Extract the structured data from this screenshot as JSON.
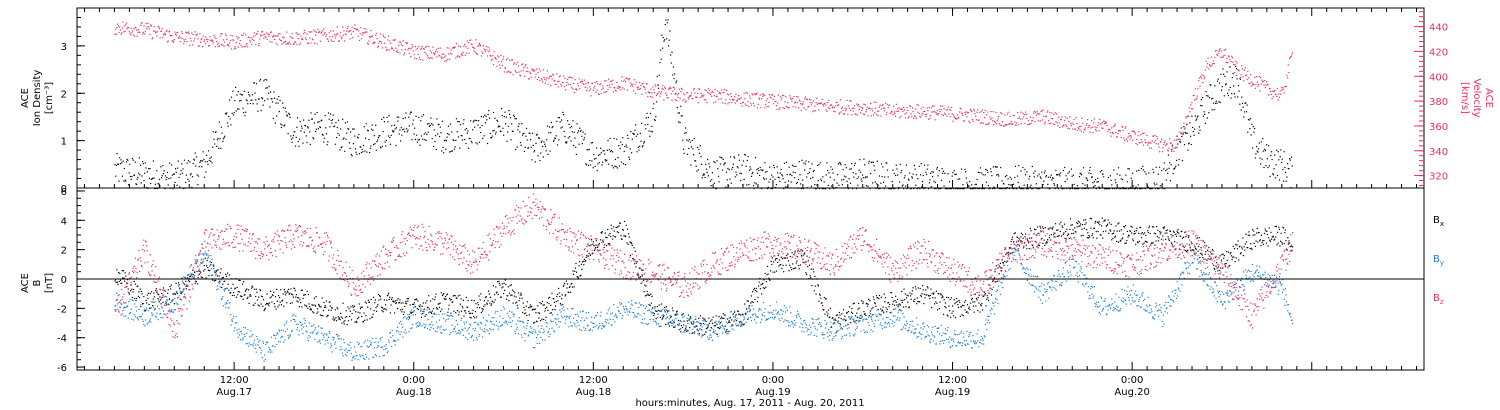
{
  "chart_data": [
    {
      "type": "scatter",
      "panel": "top",
      "ylabel_left": [
        "ACE",
        "Ion Density",
        "[cm⁻³]"
      ],
      "ylabel_right": [
        "ACE",
        "Velocity",
        "[km/s]"
      ],
      "ylim_left": [
        0,
        3.8
      ],
      "ylim_right": [
        310,
        455
      ],
      "yticks_left": [
        0,
        1,
        2,
        3
      ],
      "yticks_right": [
        320,
        340,
        360,
        380,
        400,
        420,
        440
      ],
      "colors": {
        "density": "#000000",
        "velocity": "#e8305a"
      },
      "series": [
        {
          "name": "Ion Density",
          "axis": "left",
          "color": "#000000",
          "x_hours": [
            0,
            2,
            4,
            6,
            8,
            10,
            12,
            14,
            16,
            18,
            20,
            22,
            24,
            26,
            28,
            30,
            32,
            34,
            36,
            36.8,
            38,
            40,
            42,
            44,
            46,
            48,
            50,
            52,
            54,
            56,
            58,
            60,
            62,
            64,
            66,
            68,
            70,
            71,
            72,
            73,
            74,
            75,
            76,
            77,
            78,
            78.7
          ],
          "y": [
            0.4,
            0.3,
            0.2,
            0.5,
            1.8,
            2.0,
            1.2,
            1.3,
            1.0,
            1.2,
            1.3,
            1.1,
            1.2,
            1.4,
            0.8,
            1.3,
            0.7,
            0.8,
            1.5,
            3.6,
            1.0,
            0.3,
            0.4,
            0.2,
            0.3,
            0.2,
            0.3,
            0.2,
            0.2,
            0.1,
            0.1,
            0.15,
            0.1,
            0.1,
            0.1,
            0.1,
            0.2,
            0.8,
            1.2,
            1.8,
            2.2,
            2.3,
            1.0,
            0.6,
            0.5,
            0.3
          ]
        },
        {
          "name": "Velocity",
          "axis": "right",
          "color": "#e8305a",
          "x_hours": [
            0,
            2,
            4,
            6,
            8,
            10,
            12,
            14,
            16,
            18,
            20,
            22,
            24,
            26,
            28,
            30,
            32,
            34,
            36,
            38,
            40,
            42,
            44,
            46,
            48,
            50,
            52,
            54,
            56,
            58,
            60,
            62,
            64,
            66,
            68,
            70,
            71,
            72,
            73,
            74,
            75,
            76,
            77,
            78,
            78.7
          ],
          "y": [
            440,
            438,
            432,
            430,
            428,
            432,
            431,
            433,
            436,
            428,
            420,
            418,
            425,
            410,
            402,
            395,
            390,
            395,
            388,
            385,
            385,
            382,
            380,
            378,
            376,
            375,
            372,
            372,
            370,
            368,
            365,
            368,
            362,
            360,
            352,
            345,
            345,
            380,
            410,
            420,
            405,
            398,
            390,
            385,
            420
          ]
        }
      ]
    },
    {
      "type": "scatter",
      "panel": "bottom",
      "ylabel_left": [
        "ACE",
        "B",
        "[nT]"
      ],
      "ylim": [
        -6.2,
        6.2
      ],
      "yticks": [
        -6,
        -4,
        -2,
        0,
        2,
        4,
        6
      ],
      "legend": [
        {
          "label": "B",
          "sub": "x",
          "color": "#000000"
        },
        {
          "label": "B",
          "sub": "y",
          "color": "#1f7fd6"
        },
        {
          "label": "B",
          "sub": "z",
          "color": "#e8305a"
        }
      ],
      "series": [
        {
          "name": "Bx",
          "color": "#000000",
          "x_hours": [
            0,
            2,
            4,
            6,
            8,
            10,
            12,
            14,
            16,
            18,
            20,
            22,
            24,
            26,
            28,
            30,
            32,
            34,
            36,
            38,
            40,
            42,
            44,
            46,
            48,
            50,
            52,
            54,
            56,
            58,
            60,
            62,
            64,
            66,
            68,
            70,
            72,
            74,
            76,
            78,
            78.7
          ],
          "y": [
            0.5,
            -1.5,
            -1.0,
            0.8,
            -0.5,
            -1.5,
            -1.0,
            -2.0,
            -2.5,
            -1.5,
            -2.0,
            -1.5,
            -2.0,
            -0.5,
            -2.5,
            -1.0,
            2.5,
            3.5,
            -2.0,
            -3.0,
            -3.2,
            -2.5,
            1.0,
            1.5,
            -3.0,
            -2.0,
            -1.5,
            -1.0,
            -2.0,
            -1.5,
            2.5,
            3.0,
            3.5,
            3.5,
            3.0,
            3.0,
            2.5,
            1.0,
            2.8,
            3.0,
            2.0
          ]
        },
        {
          "name": "By",
          "color": "#1f7fd6",
          "x_hours": [
            0,
            2,
            4,
            6,
            8,
            10,
            12,
            14,
            16,
            18,
            20,
            22,
            24,
            26,
            28,
            30,
            32,
            34,
            36,
            38,
            40,
            42,
            44,
            46,
            48,
            50,
            52,
            54,
            56,
            58,
            60,
            62,
            64,
            66,
            68,
            70,
            72,
            74,
            76,
            78,
            78.7
          ],
          "y": [
            -1.5,
            -2.5,
            -1.5,
            2.0,
            -3.0,
            -5.0,
            -3.0,
            -4.0,
            -5.0,
            -4.5,
            -2.5,
            -3.0,
            -3.5,
            -2.5,
            -4.0,
            -2.5,
            -3.0,
            -2.0,
            -2.5,
            -3.0,
            -3.5,
            -2.5,
            -2.0,
            -3.0,
            -3.5,
            -3.0,
            -2.5,
            -3.5,
            -4.0,
            -4.0,
            2.0,
            -1.0,
            1.0,
            -2.0,
            -1.0,
            -2.5,
            1.5,
            -1.5,
            0.5,
            -0.5,
            -3.0
          ]
        },
        {
          "name": "Bz",
          "color": "#e8305a",
          "x_hours": [
            0,
            2,
            4,
            6,
            8,
            10,
            12,
            14,
            16,
            18,
            20,
            22,
            24,
            26,
            28,
            30,
            32,
            34,
            36,
            38,
            40,
            42,
            44,
            46,
            48,
            50,
            52,
            54,
            56,
            58,
            60,
            62,
            64,
            66,
            68,
            70,
            72,
            74,
            76,
            78,
            78.7
          ],
          "y": [
            -2.5,
            2.0,
            -3.5,
            2.5,
            3.0,
            2.0,
            3.0,
            2.5,
            -0.5,
            1.5,
            3.0,
            2.5,
            1.0,
            3.5,
            5.0,
            3.0,
            2.0,
            1.0,
            0.5,
            -0.5,
            1.0,
            2.0,
            2.5,
            2.0,
            1.0,
            3.0,
            0.5,
            2.0,
            0.5,
            -0.5,
            2.0,
            2.5,
            2.0,
            1.5,
            1.0,
            2.0,
            2.5,
            0.5,
            -2.5,
            1.0,
            2.5
          ]
        }
      ]
    }
  ],
  "x_axis": {
    "range_hours": [
      -2.5,
      87.5
    ],
    "ticks": [
      {
        "hour": 8,
        "time": "12:00",
        "date": "Aug.17"
      },
      {
        "hour": 20,
        "time": "0:00",
        "date": "Aug.18"
      },
      {
        "hour": 32,
        "time": "12:00",
        "date": "Aug.18"
      },
      {
        "hour": 44,
        "time": "0:00",
        "date": "Aug.19"
      },
      {
        "hour": 56,
        "time": "12:00",
        "date": "Aug.19"
      },
      {
        "hour": 68,
        "time": "0:00",
        "date": "Aug.20"
      }
    ],
    "title": "hours:minutes, Aug. 17, 2011 - Aug. 20, 2011"
  },
  "top_panel": {
    "ylabel_line1": "ACE",
    "ylabel_line2": "Ion Density",
    "ylabel_line3": "[cm⁻³]",
    "yticks": [
      "0",
      "1",
      "2",
      "3"
    ],
    "ylabel_right_line1": "ACE",
    "ylabel_right_line2": "Velocity",
    "ylabel_right_line3": "[km/s]",
    "yticks_right": [
      "320",
      "340",
      "360",
      "380",
      "400",
      "420",
      "440"
    ]
  },
  "bottom_panel": {
    "ylabel_line1": "ACE",
    "ylabel_line2": "B",
    "ylabel_line3": "[nT]",
    "yticks": [
      "-6",
      "-4",
      "-2",
      "0",
      "2",
      "4",
      "6"
    ],
    "legend": [
      {
        "label": "B",
        "sub": "x"
      },
      {
        "label": "B",
        "sub": "y"
      },
      {
        "label": "B",
        "sub": "z"
      }
    ]
  }
}
